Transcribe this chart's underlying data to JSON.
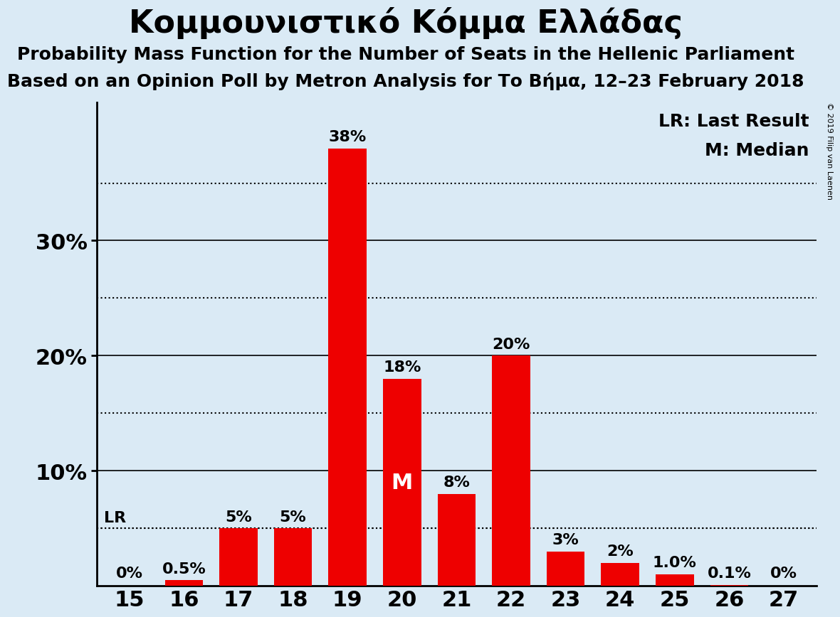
{
  "title": "Κομμουνιστικό Κόμμα Ελλάδας",
  "subtitle1": "Probability Mass Function for the Number of Seats in the Hellenic Parliament",
  "subtitle2": "Based on an Opinion Poll by Metron Analysis for Τo Βήμα, 12–23 February 2018",
  "copyright": "© 2019 Filip van Laenen",
  "categories": [
    15,
    16,
    17,
    18,
    19,
    20,
    21,
    22,
    23,
    24,
    25,
    26,
    27
  ],
  "values": [
    0.0,
    0.5,
    5.0,
    5.0,
    38.0,
    18.0,
    8.0,
    20.0,
    3.0,
    2.0,
    1.0,
    0.1,
    0.0
  ],
  "bar_color": "#ee0000",
  "background_color": "#daeaf5",
  "bar_labels": [
    "0%",
    "0.5%",
    "5%",
    "5%",
    "38%",
    "18%",
    "8%",
    "20%",
    "3%",
    "2%",
    "1.0%",
    "0.1%",
    "0%"
  ],
  "yticks": [
    10,
    20,
    30
  ],
  "solid_lines": [
    10,
    20,
    30
  ],
  "dotted_lines": [
    5,
    15,
    25,
    35
  ],
  "lr_value": 5.0,
  "median_seat": 20,
  "legend_lr": "LR: Last Result",
  "legend_m": "M: Median",
  "title_fontsize": 32,
  "subtitle_fontsize": 18,
  "bar_label_fontsize": 16,
  "ytick_fontsize": 22,
  "xtick_fontsize": 22,
  "ylim_max": 42
}
